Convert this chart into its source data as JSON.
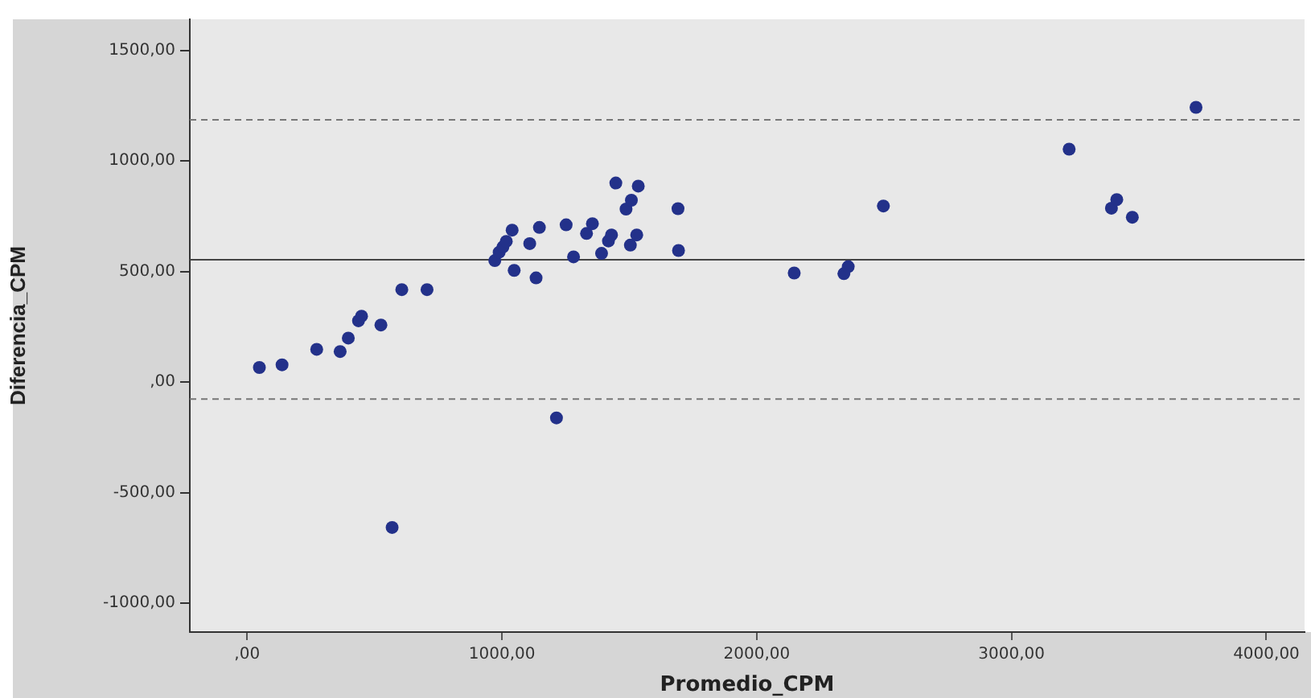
{
  "chart_data": {
    "type": "scatter",
    "xlabel": "Promedio_CPM",
    "ylabel": "Diferencia_CPM",
    "xlim": [
      -225,
      4150
    ],
    "ylim": [
      -1130,
      1640
    ],
    "xticks": [
      {
        "value": 0,
        "label": ",00"
      },
      {
        "value": 1000,
        "label": "1000,00"
      },
      {
        "value": 2000,
        "label": "2000,00"
      },
      {
        "value": 3000,
        "label": "3000,00"
      },
      {
        "value": 4000,
        "label": "4000,00"
      }
    ],
    "yticks": [
      {
        "value": -1000,
        "label": "-1000,00"
      },
      {
        "value": -500,
        "label": "-500,00"
      },
      {
        "value": 0,
        "label": ",00"
      },
      {
        "value": 500,
        "label": "500,00"
      },
      {
        "value": 1000,
        "label": "1000,00"
      },
      {
        "value": 1500,
        "label": "1500,00"
      }
    ],
    "grid": false,
    "legend": false,
    "marker": "circle",
    "ref_lines": [
      {
        "axis": "y",
        "value": 553,
        "color": "#444444",
        "line_style": "solid"
      },
      {
        "axis": "y",
        "value": 1186,
        "color": "#777777",
        "line_style": "dashed"
      },
      {
        "axis": "y",
        "value": -77,
        "color": "#777777",
        "line_style": "dashed"
      }
    ],
    "series": [
      {
        "color": "#23318a",
        "x": [
          48,
          137,
          273,
          365,
          397,
          437,
          449,
          525,
          607,
          706,
          569,
          972,
          989,
          1004,
          1017,
          1040,
          1048,
          1109,
          1134,
          1147,
          1214,
          1252,
          1281,
          1332,
          1355,
          1391,
          1418,
          1430,
          1447,
          1487,
          1508,
          1504,
          1529,
          1535,
          1529,
          1691,
          1693,
          2147,
          2342,
          2359,
          2497,
          3226,
          3392,
          3413,
          3474,
          3724
        ],
        "values": [
          66,
          78,
          148,
          138,
          199,
          277,
          298,
          258,
          418,
          418,
          -657,
          549,
          587,
          611,
          636,
          687,
          505,
          626,
          471,
          699,
          -162,
          711,
          566,
          672,
          716,
          582,
          638,
          665,
          900,
          782,
          822,
          619,
          null,
          886,
          665,
          784,
          595,
          493,
          490,
          522,
          796,
          1053,
          786,
          825,
          745,
          1242
        ]
      }
    ]
  }
}
